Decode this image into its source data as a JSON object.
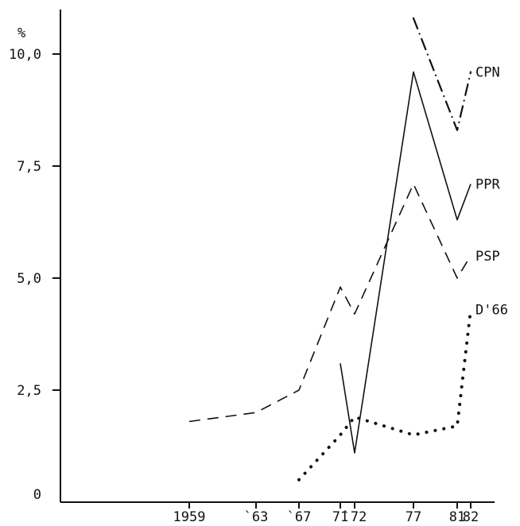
{
  "chart_data": {
    "type": "line",
    "ylabel": "%",
    "ylim": [
      0,
      11.0
    ],
    "yticks": [
      {
        "value": 0,
        "label": "0"
      },
      {
        "value": 2.5,
        "label": "2,5"
      },
      {
        "value": 5.0,
        "label": "5,0"
      },
      {
        "value": 7.5,
        "label": "7,5"
      },
      {
        "value": 10.0,
        "label": "10,0"
      }
    ],
    "xlim": [
      1950,
      1985
    ],
    "xticks": [
      {
        "value": 1959,
        "label": "1959"
      },
      {
        "value": 1963,
        "label": "`63"
      },
      {
        "value": 1967,
        "label": "`67"
      },
      {
        "value": 1971,
        "label": "71"
      },
      {
        "value": 1972,
        "label": "`72"
      },
      {
        "value": 1977,
        "label": "77"
      },
      {
        "value": 1981,
        "label": "81"
      },
      {
        "value": 1982,
        "label": "82"
      }
    ],
    "grid": false,
    "series": [
      {
        "name": "CPN",
        "style": "dashdot",
        "points": [
          [
            1977,
            10.8
          ],
          [
            1981,
            8.3
          ],
          [
            1982,
            9.6
          ]
        ]
      },
      {
        "name": "PPR",
        "style": "solid",
        "points": [
          [
            1971,
            3.1
          ],
          [
            1972,
            1.1
          ],
          [
            1977,
            9.6
          ],
          [
            1981,
            6.3
          ],
          [
            1982,
            7.1
          ]
        ]
      },
      {
        "name": "PSP",
        "style": "dashed",
        "points": [
          [
            1959,
            1.8
          ],
          [
            1963,
            2.0
          ],
          [
            1967,
            2.5
          ],
          [
            1971,
            4.8
          ],
          [
            1972,
            4.2
          ],
          [
            1977,
            7.1
          ],
          [
            1981,
            5.0
          ],
          [
            1982,
            5.5
          ]
        ]
      },
      {
        "name": "D'66",
        "style": "dotted",
        "points": [
          [
            1967,
            0.5
          ],
          [
            1971,
            1.5
          ],
          [
            1972,
            1.9
          ],
          [
            1977,
            1.5
          ],
          [
            1981,
            1.7
          ],
          [
            1982,
            4.3
          ]
        ]
      }
    ]
  }
}
